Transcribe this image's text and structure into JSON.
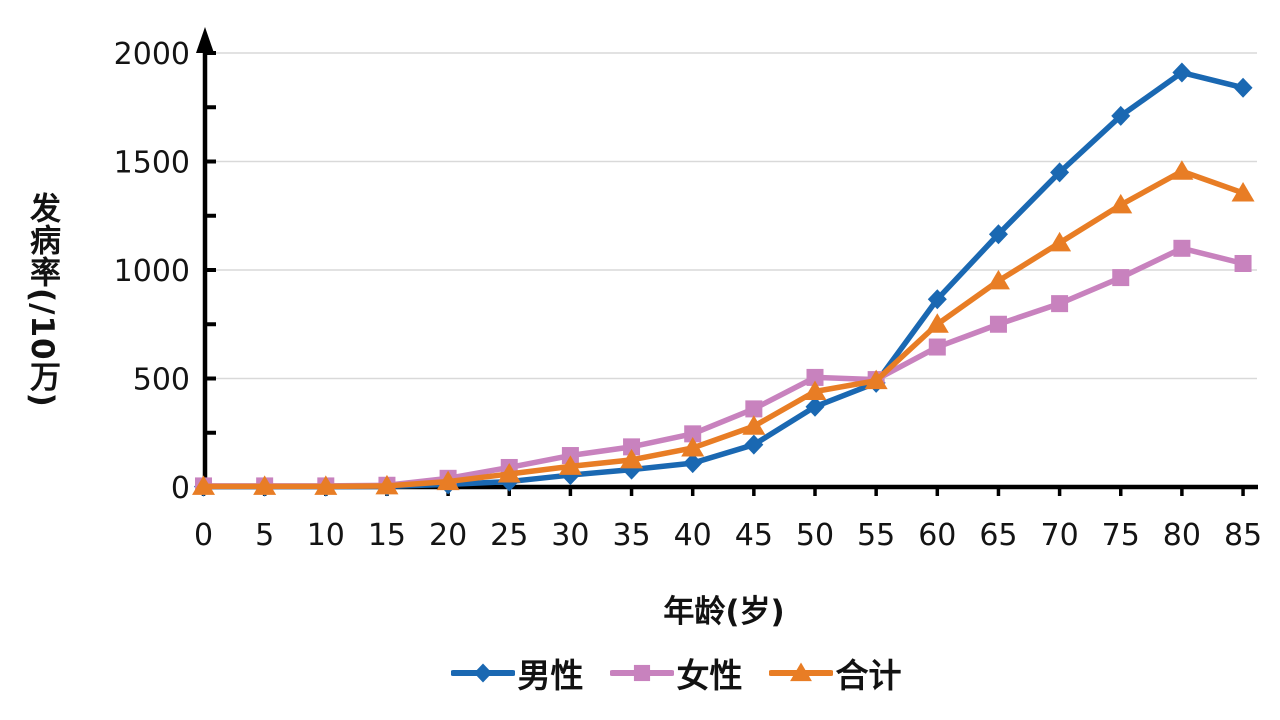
{
  "chart_data": {
    "type": "line",
    "title": "",
    "xlabel": "年龄(岁)",
    "ylabel": "发病率(/10万)",
    "x": [
      0,
      5,
      10,
      15,
      20,
      25,
      30,
      35,
      40,
      45,
      50,
      55,
      60,
      65,
      70,
      75,
      80,
      85
    ],
    "y_ticks": [
      0,
      500,
      1000,
      1500,
      2000
    ],
    "y_minor_tick_step": 250,
    "ylim": [
      0,
      2000
    ],
    "grid": "horizontal",
    "legend_position": "bottom",
    "series": [
      {
        "id": "male",
        "name": "男性",
        "color": "#1a68b2",
        "marker": "diamond",
        "values": [
          2,
          2,
          2,
          3,
          12,
          25,
          55,
          80,
          110,
          195,
          370,
          480,
          865,
          1165,
          1450,
          1710,
          1910,
          1840
        ]
      },
      {
        "id": "female",
        "name": "女性",
        "color": "#c882be",
        "marker": "square",
        "values": [
          5,
          5,
          5,
          8,
          40,
          90,
          145,
          185,
          245,
          360,
          505,
          495,
          645,
          750,
          845,
          965,
          1100,
          1030
        ]
      },
      {
        "id": "total",
        "name": "合计",
        "color": "#e87d25",
        "marker": "triangle",
        "values": [
          3,
          3,
          3,
          5,
          25,
          60,
          95,
          125,
          180,
          280,
          440,
          490,
          750,
          950,
          1125,
          1300,
          1455,
          1355
        ]
      }
    ],
    "colors": {
      "grid": "#d9d9d9",
      "axis": "#000000",
      "text": "#141414"
    }
  }
}
